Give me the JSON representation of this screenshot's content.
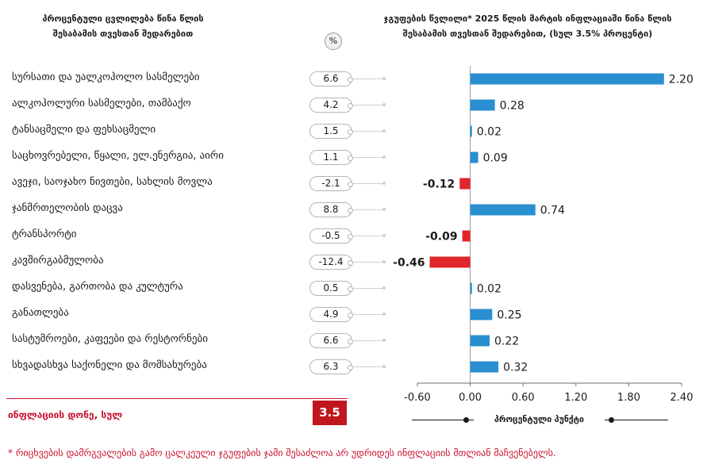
{
  "header": {
    "left_line1": "პროცენტული ცვლილება წინა წლის",
    "left_line2": "შესაბამის თვესთან შედარებით",
    "percent_badge": "%",
    "right_line1": "ჯგუფების წვლილი* 2025 წლის მარტის ინფლაციაში წინა წლის",
    "right_line2": "შესაბამის თვესთან შედარებით, (სულ 3.5% პროცენტი)"
  },
  "colors": {
    "positive": "#2a8fd0",
    "negative": "#e0262b",
    "accent": "#c0161e"
  },
  "rows": [
    {
      "label": "სურსათი და უალკოჰოლო სასმელები",
      "change": "6.6"
    },
    {
      "label": "ალკოჰოლური სასმელები, თამბაქო",
      "change": "4.2"
    },
    {
      "label": "ტანსაცმელი და ფეხსაცმელი",
      "change": "1.5"
    },
    {
      "label": "საცხოვრებელი, წყალი, ელ.ენერგია, აირი",
      "change": "1.1"
    },
    {
      "label": "ავეჯი, საოჯახო ნივთები, სახლის მოვლა",
      "change": "-2.1"
    },
    {
      "label": "ჯანმრთელობის დაცვა",
      "change": "8.8"
    },
    {
      "label": "ტრანსპორტი",
      "change": "-0.5"
    },
    {
      "label": "კავშირგაბმულობა",
      "change": "-12.4"
    },
    {
      "label": "დასვენება, გართობა და კულტურა",
      "change": "0.5"
    },
    {
      "label": "განათლება",
      "change": "4.9"
    },
    {
      "label": "სასტუმროები, კაფეები და რესტორნები",
      "change": "6.6"
    },
    {
      "label": "სხვადასხვა საქონელი და მომსახურება",
      "change": "6.3"
    }
  ],
  "total": {
    "label": "ინფლაციის დონე, სულ",
    "value": "3.5"
  },
  "chart_data": {
    "type": "bar",
    "orientation": "horizontal",
    "categories": [
      "სურსათი და უალკოჰოლო სასმელები",
      "ალკოჰოლური სასმელები, თამბაქო",
      "ტანსაცმელი და ფეხსაცმელი",
      "საცხოვრებელი, წყალი, ელ.ენერგია, აირი",
      "ავეჯი, საოჯახო ნივთები, სახლის მოვლა",
      "ჯანმრთელობის დაცვა",
      "ტრანსპორტი",
      "კავშირგაბმულობა",
      "დასვენება, გართობა და კულტურა",
      "განათლება",
      "სასტუმროები, კაფეები და რესტორნები",
      "სხვადასხვა საქონელი და მომსახურება"
    ],
    "values": [
      2.2,
      0.28,
      0.02,
      0.09,
      -0.12,
      0.74,
      -0.09,
      -0.46,
      0.02,
      0.25,
      0.22,
      0.32
    ],
    "value_labels": [
      "2.20",
      "0.28",
      "0.02",
      "0.09",
      "-0.12",
      "0.74",
      "-0.09",
      "-0.46",
      "0.02",
      "0.25",
      "0.22",
      "0.32"
    ],
    "xlim": [
      -0.6,
      2.4
    ],
    "xticks": [
      -0.6,
      0.0,
      0.6,
      1.2,
      1.8,
      2.4
    ],
    "xtick_labels": [
      "-0.60",
      "0.00",
      "0.60",
      "1.20",
      "1.80",
      "2.40"
    ],
    "xlabel": "პროცენტული პუნქტი",
    "grid": false
  },
  "footnote": "* რიცხვების დამრგვალების გამო ცალკეული ჯგუფების ჯამი შესაძლოა არ უდრიდეს ინფლაციის მთლიან მაჩვენებელს."
}
